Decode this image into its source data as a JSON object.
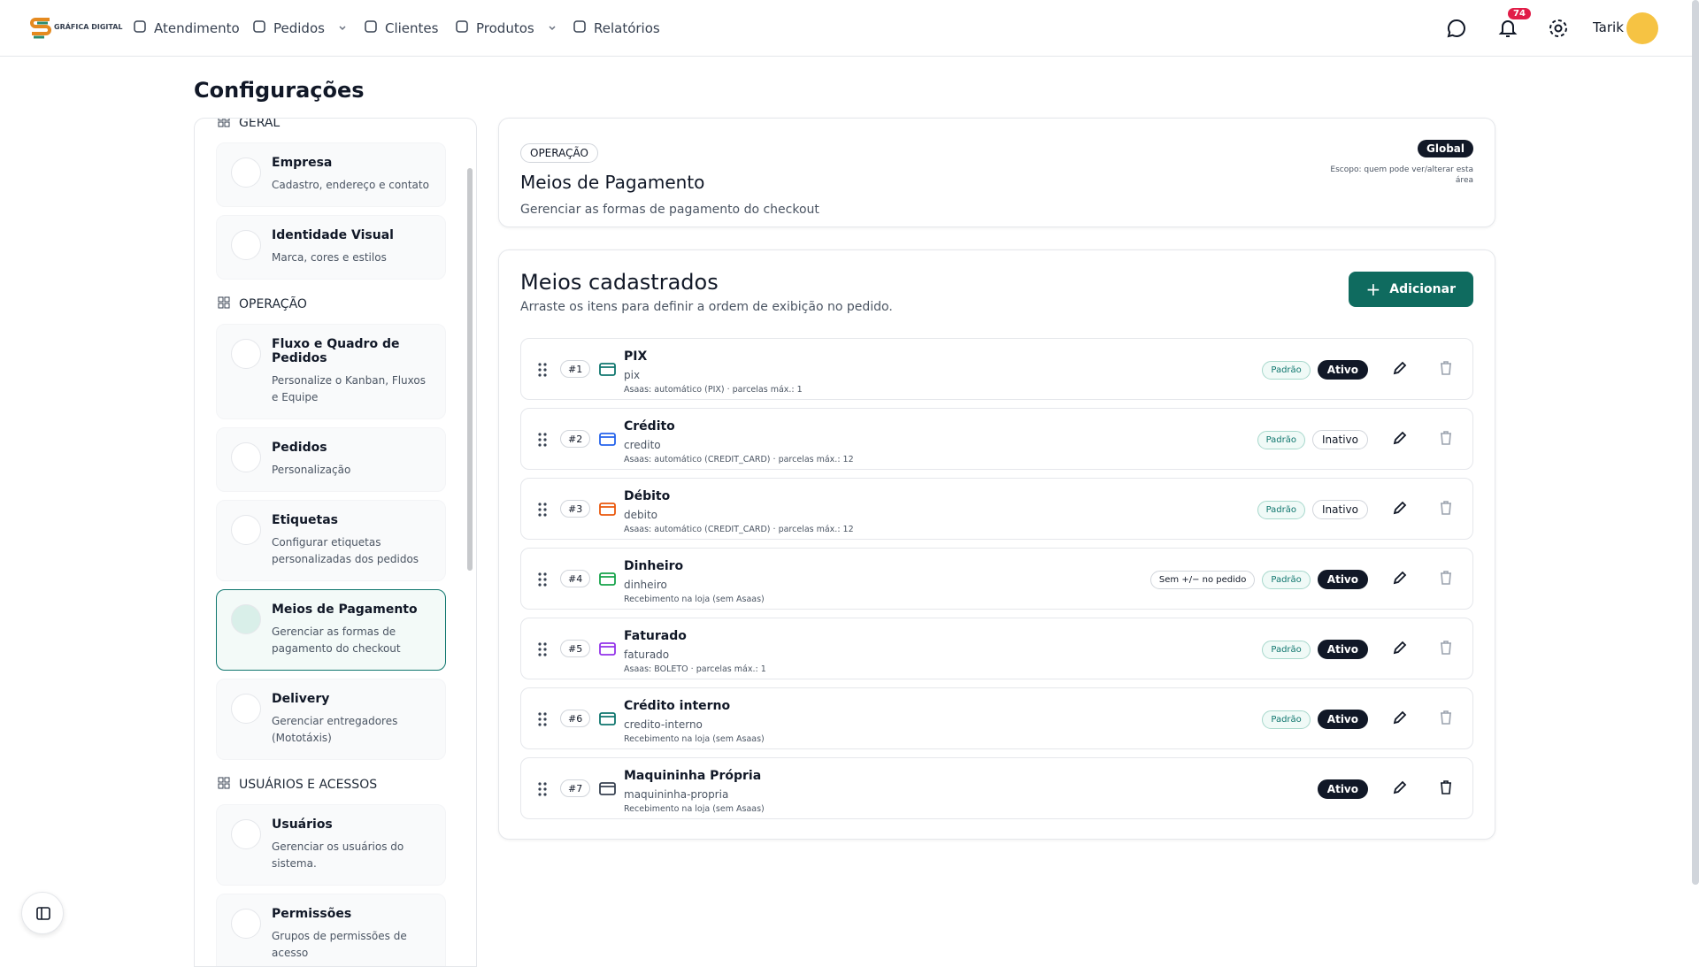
{
  "nav": {
    "logo": "GRÁFICA DIGITAL",
    "items": [
      "Atendimento",
      "Pedidos",
      "Clientes",
      "Produtos",
      "Relatórios"
    ],
    "notifications": "74",
    "user": "Tarik"
  },
  "page_title": "Configurações",
  "sidebar": {
    "sections": [
      {
        "title": "GERAL",
        "items": [
          {
            "title": "Empresa",
            "description": "Cadastro, endereço e contato"
          },
          {
            "title": "Identidade Visual",
            "description": "Marca, cores e estilos"
          }
        ]
      },
      {
        "title": "OPERAÇÃO",
        "items": [
          {
            "title": "Fluxo e Quadro de Pedidos",
            "description": "Personalize o Kanban, Fluxos e Equipe"
          },
          {
            "title": "Pedidos",
            "description": "Personalização"
          },
          {
            "title": "Etiquetas",
            "description": "Configurar etiquetas personalizadas dos pedidos"
          },
          {
            "title": "Meios de Pagamento",
            "description": "Gerenciar as formas de pagamento do checkout"
          },
          {
            "title": "Delivery",
            "description": "Gerenciar entregadores (Mototáxis)"
          }
        ]
      },
      {
        "title": "USUÁRIOS E ACESSOS",
        "items": [
          {
            "title": "Usuários",
            "description": "Gerenciar os usuários do sistema."
          },
          {
            "title": "Permissões",
            "description": "Grupos de permissões de acesso"
          }
        ]
      }
    ]
  },
  "header_card": {
    "tag": "OPERAÇÃO",
    "title": "Meios de Pagamento",
    "description": "Gerenciar as formas de pagamento do checkout",
    "badge": "Global",
    "scope": "Escopo: quem pode ver/alterar esta área"
  },
  "list_card": {
    "title": "Meios cadastrados",
    "subtitle": "Arraste os itens para definir a ordem de exibição no pedido.",
    "button": "Adicionar",
    "items": [
      {
        "index": "#1",
        "name": "PIX",
        "slug": "pix",
        "detail": "Asaas: automático (PIX) · parcelas máx.: 1",
        "tags": [
          "Padrão"
        ],
        "status": "Ativo"
      },
      {
        "index": "#2",
        "name": "Crédito",
        "slug": "credito",
        "detail": "Asaas: automático (CREDIT_CARD) · parcelas máx.: 12",
        "tags": [
          "Padrão"
        ],
        "status": "Inativo"
      },
      {
        "index": "#3",
        "name": "Débito",
        "slug": "debito",
        "detail": "Asaas: automático (CREDIT_CARD) · parcelas máx.: 12",
        "tags": [
          "Padrão"
        ],
        "status": "Inativo"
      },
      {
        "index": "#4",
        "name": "Dinheiro",
        "slug": "dinheiro",
        "detail": "Recebimento na loja (sem Asaas)",
        "tags": [
          "Sem +/− no pedido",
          "Padrão"
        ],
        "status": "Ativo"
      },
      {
        "index": "#5",
        "name": "Faturado",
        "slug": "faturado",
        "detail": "Asaas: BOLETO · parcelas máx.: 1",
        "tags": [
          "Padrão"
        ],
        "status": "Ativo"
      },
      {
        "index": "#6",
        "name": "Crédito interno",
        "slug": "credito-interno",
        "detail": "Recebimento na loja (sem Asaas)",
        "tags": [
          "Padrão"
        ],
        "status": "Ativo"
      },
      {
        "index": "#7",
        "name": "Maquininha Própria",
        "slug": "maquininha-propria",
        "detail": "Recebimento na loja (sem Asaas)",
        "tags": [],
        "status": "Ativo"
      }
    ]
  }
}
